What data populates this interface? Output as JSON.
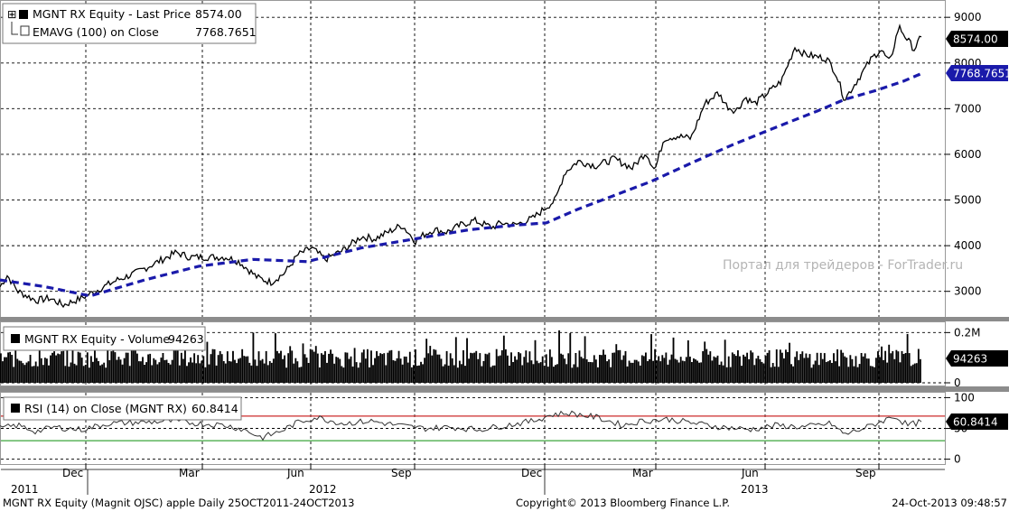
{
  "chart_data": [
    {
      "type": "line",
      "panel": "price",
      "legend": {
        "line1": "MGNT RX Equity  - Last Price",
        "line1_value": "8574.00",
        "line2": "EMAVG (100) on Close",
        "line2_value": "7768.7651"
      },
      "ylim": [
        2500,
        9300
      ],
      "yticks": [
        "3000",
        "4000",
        "5000",
        "6000",
        "7000",
        "8000",
        "9000"
      ],
      "tags": {
        "last": "8574.00",
        "ema": "7768.7651"
      },
      "series": [
        {
          "name": "MGNT RX Equity  - Last Price",
          "color": "#000000",
          "x": [
            0,
            8,
            20,
            40,
            55,
            70,
            90,
            110,
            130,
            150,
            175,
            195,
            210,
            230,
            250,
            265,
            285,
            300,
            315,
            330,
            345,
            360,
            380,
            400,
            415,
            430,
            445,
            460,
            470,
            480,
            495,
            510,
            525,
            545,
            555,
            570,
            590,
            605,
            615,
            625,
            640,
            660,
            680,
            700,
            715,
            725,
            735,
            750,
            765,
            780,
            795,
            805,
            815,
            825,
            835,
            850,
            865,
            880,
            890,
            900,
            915,
            925,
            935,
            945,
            955,
            965,
            975,
            985,
            995,
            1005,
            1012,
            1020
          ],
          "values": [
            3100,
            3350,
            3000,
            2800,
            2850,
            2700,
            2850,
            3050,
            3250,
            3400,
            3650,
            3850,
            3750,
            3750,
            3750,
            3650,
            3300,
            3200,
            3400,
            3800,
            3950,
            3700,
            3900,
            4200,
            4150,
            4300,
            4450,
            4100,
            4250,
            4350,
            4300,
            4450,
            4550,
            4400,
            4500,
            4450,
            4600,
            4850,
            5000,
            5600,
            5850,
            5750,
            5900,
            5700,
            6050,
            5650,
            6350,
            6400,
            6350,
            7100,
            7350,
            7050,
            6950,
            7250,
            7100,
            7350,
            7600,
            8350,
            8200,
            8150,
            8100,
            7800,
            7200,
            7500,
            7800,
            8100,
            8300,
            8000,
            8800,
            8500,
            8300,
            8574
          ]
        },
        {
          "name": "EMAVG (100) on Close",
          "color": "#1a1aaa",
          "style": "dashed",
          "x": [
            0,
            50,
            100,
            160,
            220,
            280,
            340,
            400,
            460,
            520,
            570,
            605,
            640,
            680,
            720,
            770,
            810,
            860,
            905,
            935,
            970,
            1000,
            1020
          ],
          "values": [
            3250,
            3100,
            2900,
            3250,
            3550,
            3700,
            3650,
            3950,
            4150,
            4350,
            4450,
            4500,
            4800,
            5100,
            5400,
            5850,
            6200,
            6600,
            6950,
            7200,
            7400,
            7600,
            7769
          ]
        }
      ]
    },
    {
      "type": "bar",
      "panel": "volume",
      "legend": {
        "label": "MGNT RX Equity  - Volume",
        "value": "94263"
      },
      "ylim": [
        0,
        230000
      ],
      "yticks": [
        "0",
        "0.2M"
      ],
      "tags": {
        "last": "94263"
      },
      "series": [
        {
          "name": "MGNT RX Equity  - Volume",
          "color": "#000000",
          "x_range": [
            0,
            1020
          ],
          "bar_count": 500,
          "base": 60000,
          "amplitude": 75000,
          "peak": 210000,
          "last": 94263
        }
      ]
    },
    {
      "type": "line",
      "panel": "rsi",
      "legend": {
        "label": "RSI (14) on Close (MGNT RX)",
        "value": "60.8414"
      },
      "ylim": [
        -5,
        105
      ],
      "yticks": [
        "0",
        "50",
        "100"
      ],
      "levels": {
        "overbought": 70,
        "oversold": 30
      },
      "tags": {
        "last": "60.8414"
      },
      "series": [
        {
          "name": "RSI (14) on Close (MGNT RX)",
          "color": "#333333",
          "x": [
            0,
            20,
            40,
            60,
            90,
            120,
            160,
            190,
            220,
            250,
            270,
            290,
            310,
            330,
            350,
            380,
            410,
            440,
            470,
            500,
            530,
            560,
            590,
            610,
            630,
            660,
            690,
            710,
            740,
            770,
            800,
            830,
            860,
            890,
            920,
            935,
            960,
            990,
            1005,
            1020
          ],
          "values": [
            50,
            55,
            45,
            52,
            48,
            58,
            60,
            62,
            58,
            55,
            48,
            35,
            45,
            60,
            68,
            58,
            62,
            55,
            50,
            52,
            48,
            55,
            62,
            72,
            75,
            68,
            55,
            62,
            65,
            58,
            52,
            48,
            55,
            52,
            58,
            40,
            52,
            70,
            55,
            60.84
          ]
        }
      ]
    }
  ],
  "x_axis": {
    "months": [
      "Dec",
      "Mar",
      "Jun",
      "Sep",
      "Dec",
      "Mar",
      "Jun",
      "Sep"
    ],
    "years": [
      "2011",
      "2012",
      "2013"
    ]
  },
  "watermark": "Портал для трейдеров - ForTrader.ru",
  "footer": {
    "left": "MGNT RX Equity (Magnit OJSC) apple  Daily 25OCT2011-24OCT2013",
    "center": "Copyright© 2013 Bloomberg Finance L.P.",
    "right": "24-Oct-2013 09:48:57"
  },
  "colors": {
    "price_line": "#000000",
    "ema_line": "#1a1aaa",
    "ema_tag_bg": "#1a1aaa",
    "overbought_line": "#cc2b2b",
    "oversold_line": "#3ca63c",
    "grid": "#000000",
    "panel_border": "#8c8c8c"
  }
}
